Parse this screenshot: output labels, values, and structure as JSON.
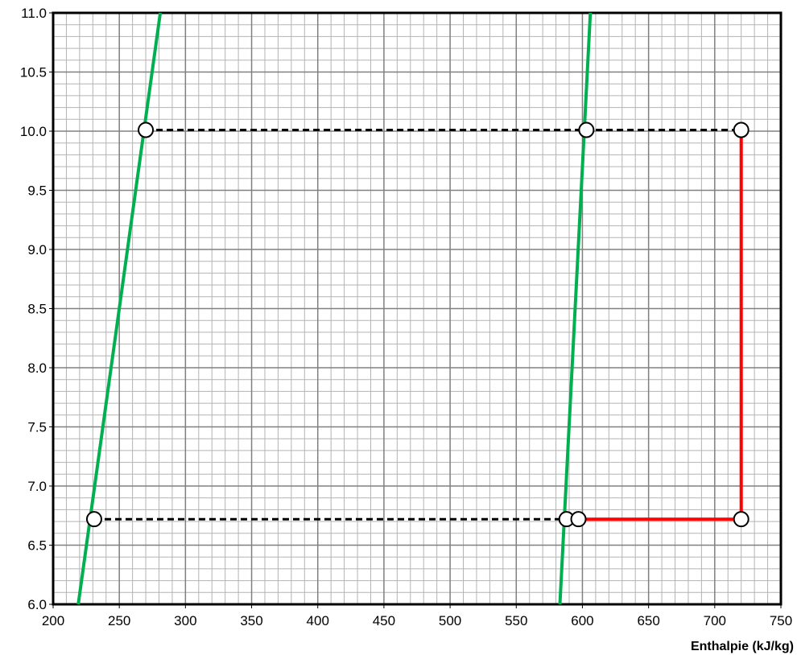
{
  "chart_data": {
    "type": "line",
    "title": "",
    "xlabel": "Enthalpie (kJ/kg)",
    "ylabel": "",
    "xlim": [
      200,
      750
    ],
    "ylim": [
      6.0,
      11.0
    ],
    "x_major_step": 50,
    "x_minor_step": 10,
    "y_major_step": 0.5,
    "y_minor_step": 0.1,
    "x_ticks": [
      "200",
      "250",
      "300",
      "350",
      "400",
      "450",
      "500",
      "550",
      "600",
      "650",
      "700",
      "750"
    ],
    "y_ticks": [
      "6.0",
      "6.5",
      "7.0",
      "7.5",
      "8.0",
      "8.5",
      "9.0",
      "9.5",
      "10.0",
      "10.5",
      "11.0"
    ],
    "grid": true,
    "legend": "none",
    "series": [
      {
        "style": "solid",
        "color": "#00b050",
        "points": [
          [
            219,
            6.0
          ],
          [
            281,
            11.0
          ]
        ]
      },
      {
        "style": "solid",
        "color": "#00b050",
        "points": [
          [
            583,
            6.0
          ],
          [
            606,
            11.0
          ]
        ]
      },
      {
        "style": "dashed",
        "color": "#000000",
        "points": [
          [
            270,
            10.01
          ],
          [
            603,
            10.01
          ],
          [
            720,
            10.01
          ]
        ]
      },
      {
        "style": "dashed",
        "color": "#000000",
        "points": [
          [
            231,
            6.72
          ],
          [
            588,
            6.72
          ]
        ]
      },
      {
        "style": "solid",
        "color": "#ff0000",
        "points": [
          [
            597,
            6.72
          ],
          [
            720,
            6.72
          ],
          [
            720,
            10.01
          ]
        ]
      }
    ],
    "markers": [
      [
        270,
        10.01
      ],
      [
        603,
        10.01
      ],
      [
        720,
        10.01
      ],
      [
        231,
        6.72
      ],
      [
        588,
        6.72
      ],
      [
        597,
        6.72
      ],
      [
        720,
        6.72
      ]
    ]
  }
}
